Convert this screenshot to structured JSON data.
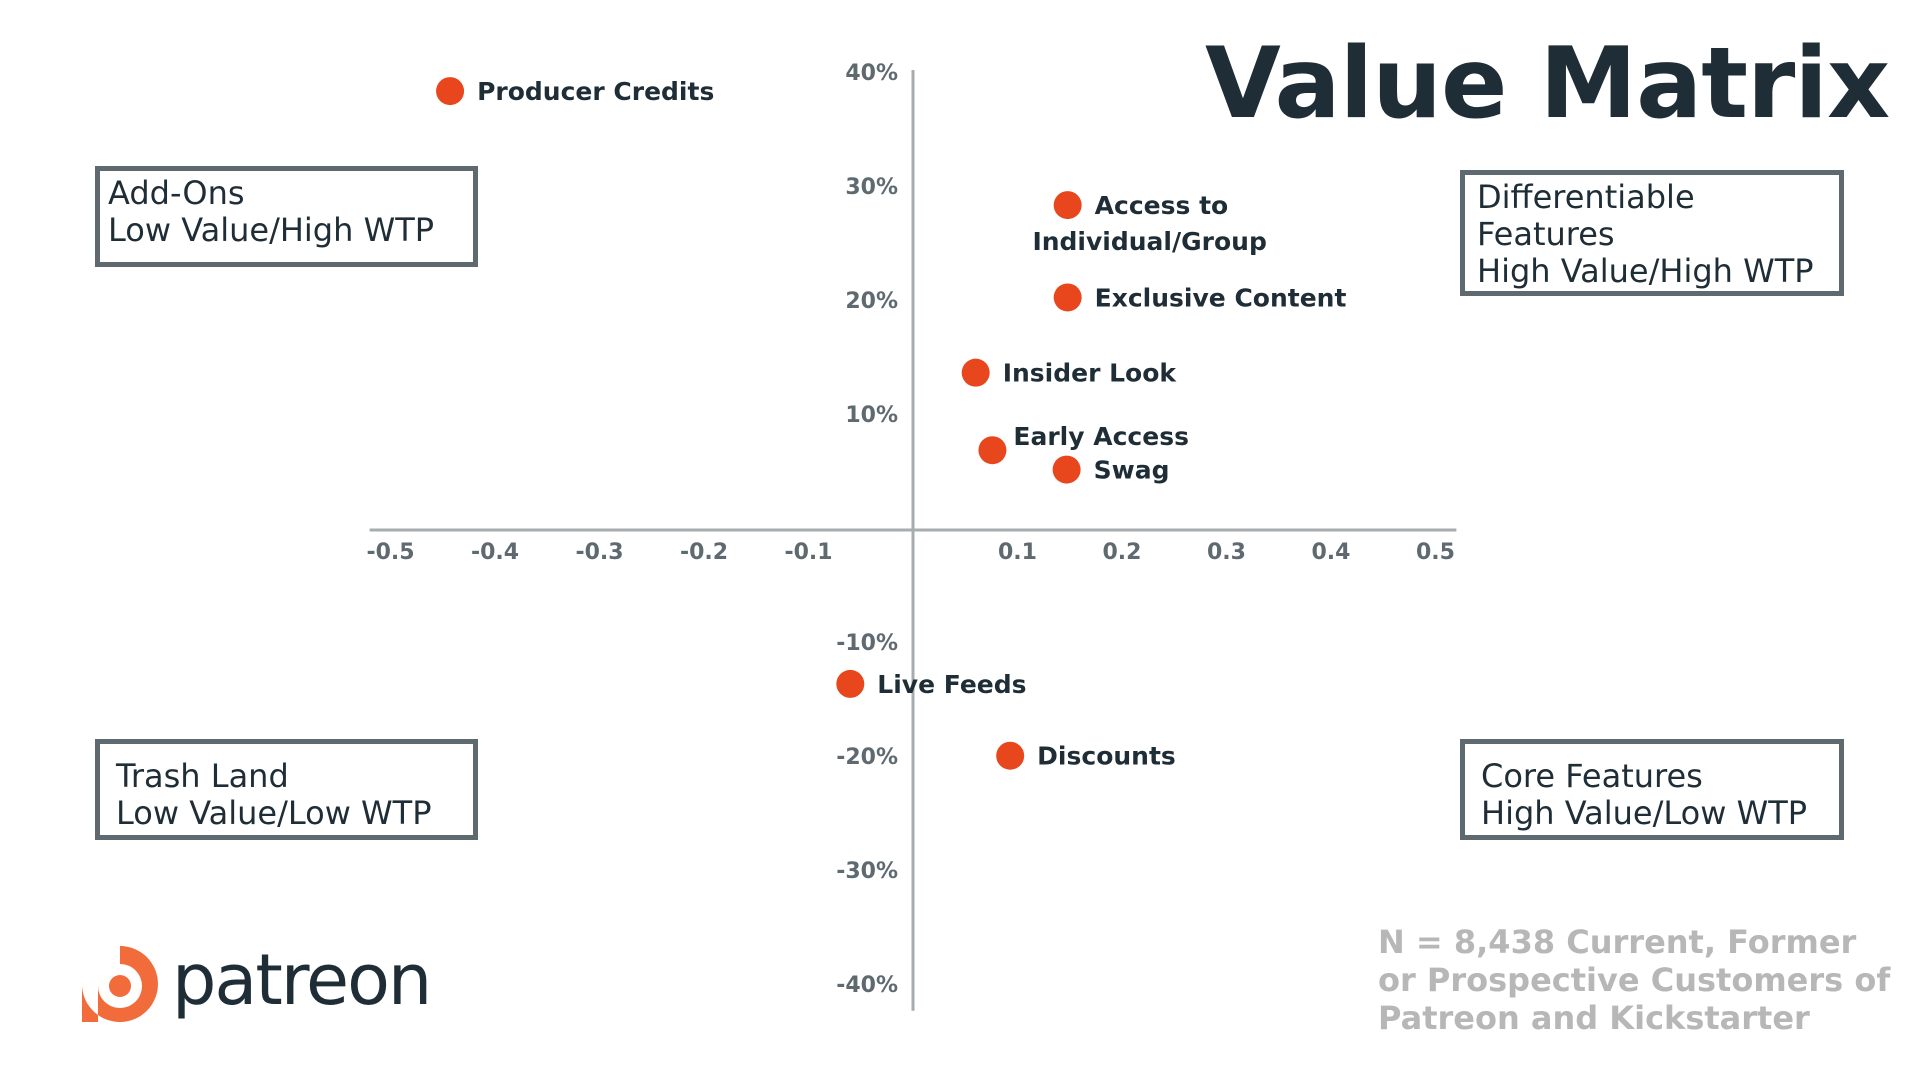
{
  "title": "Value Matrix",
  "quadrants": {
    "top_left": {
      "line1": "Add-Ons",
      "line2": "Low Value/High WTP"
    },
    "top_right": {
      "line1": "Differentiable",
      "line2": "Features",
      "line3": "High Value/High WTP"
    },
    "bottom_left": {
      "line1": "Trash Land",
      "line2": "Low Value/Low WTP"
    },
    "bottom_right": {
      "line1": "Core Features",
      "line2": "High Value/Low WTP"
    }
  },
  "note": {
    "line1": "N = 8,438 Current, Former",
    "line2": "or Prospective Customers of",
    "line3": "Patreon and Kickstarter"
  },
  "logo": {
    "text": "patreon",
    "icon": "patreon-logo-icon",
    "color": "#f26b3a"
  },
  "chart_data": {
    "type": "scatter",
    "title": "Value Matrix",
    "xlabel": "",
    "ylabel": "",
    "xlim": [
      -0.52,
      0.52
    ],
    "ylim": [
      -0.42,
      0.4
    ],
    "grid": false,
    "x_ticks": [
      -0.5,
      -0.4,
      -0.3,
      -0.2,
      -0.1,
      0.1,
      0.2,
      0.3,
      0.4,
      0.5
    ],
    "x_tick_labels": [
      "-0.5",
      "-0.4",
      "-0.3",
      "-0.2",
      "-0.1",
      "0.1",
      "0.2",
      "0.3",
      "0.4",
      "0.5"
    ],
    "y_ticks": [
      0.4,
      0.3,
      0.2,
      0.1,
      -0.1,
      -0.2,
      -0.3,
      -0.4
    ],
    "y_tick_labels": [
      "40%",
      "30%",
      "20%",
      "10%",
      "-10%",
      "-20%",
      "-30%",
      "-40%"
    ],
    "point_color": "#e8471e",
    "axis_color": "#a7acae",
    "points": [
      {
        "label": "Producer Credits",
        "x": -0.443,
        "y": 0.385,
        "label_pos": "right"
      },
      {
        "label": "Access to",
        "label2": "Individual/Group",
        "x": 0.148,
        "y": 0.285,
        "label_pos": "right-two-line"
      },
      {
        "label": "Exclusive Content",
        "x": 0.148,
        "y": 0.204,
        "label_pos": "right"
      },
      {
        "label": "Insider Look",
        "x": 0.06,
        "y": 0.138,
        "label_pos": "right"
      },
      {
        "label": "Early Access",
        "x": 0.076,
        "y": 0.07,
        "label_pos": "upper-right"
      },
      {
        "label": "Swag",
        "x": 0.147,
        "y": 0.053,
        "label_pos": "right"
      },
      {
        "label": "Live Feeds",
        "x": -0.06,
        "y": -0.135,
        "label_pos": "right"
      },
      {
        "label": "Discounts",
        "x": 0.093,
        "y": -0.198,
        "label_pos": "right"
      }
    ]
  }
}
